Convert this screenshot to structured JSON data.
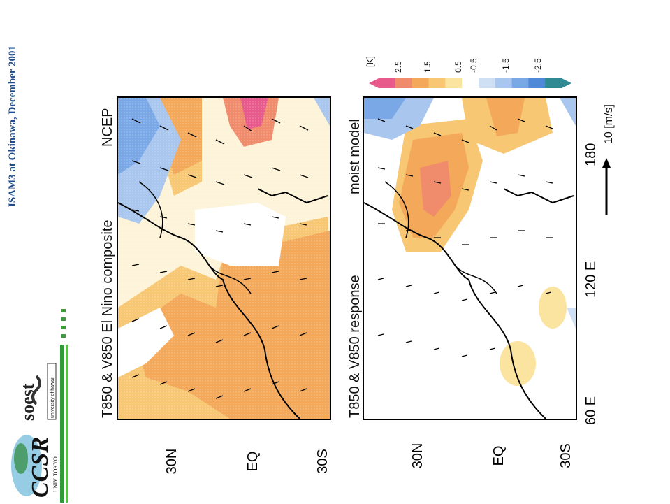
{
  "header": {
    "conference": "ISAM3 at Okinawa, December 2001"
  },
  "logos": {
    "soest_text": "soest",
    "soest_sub": "university of hawaii",
    "ccsr_text": "CCSR",
    "ccsr_sub": "UNIV. TOKYO"
  },
  "panel_top": {
    "title": "T850 & V850  El Nino composite",
    "source": "NCEP",
    "lat_labels": [
      "30N",
      "EQ",
      "30S"
    ]
  },
  "panel_bottom": {
    "title": "T850 & V850  response",
    "source": "moist model",
    "lat_labels": [
      "30N",
      "EQ",
      "30S"
    ],
    "lon_labels": [
      "60 E",
      "120 E",
      "180"
    ]
  },
  "legend": {
    "unit": "[K]",
    "ticks": [
      "2.5",
      "1.5",
      "0.5",
      "-0.5",
      "-1.5",
      "-2.5"
    ],
    "colors": [
      "#e85a8c",
      "#f08c6c",
      "#f3a85a",
      "#f7c774",
      "#fbe3a0",
      "#ffffff",
      "#cfe0f4",
      "#a8c6ee",
      "#7aa8e6",
      "#4e8ad8",
      "#2f8a94"
    ]
  },
  "vector_key": {
    "label": "10 [m/s]"
  }
}
